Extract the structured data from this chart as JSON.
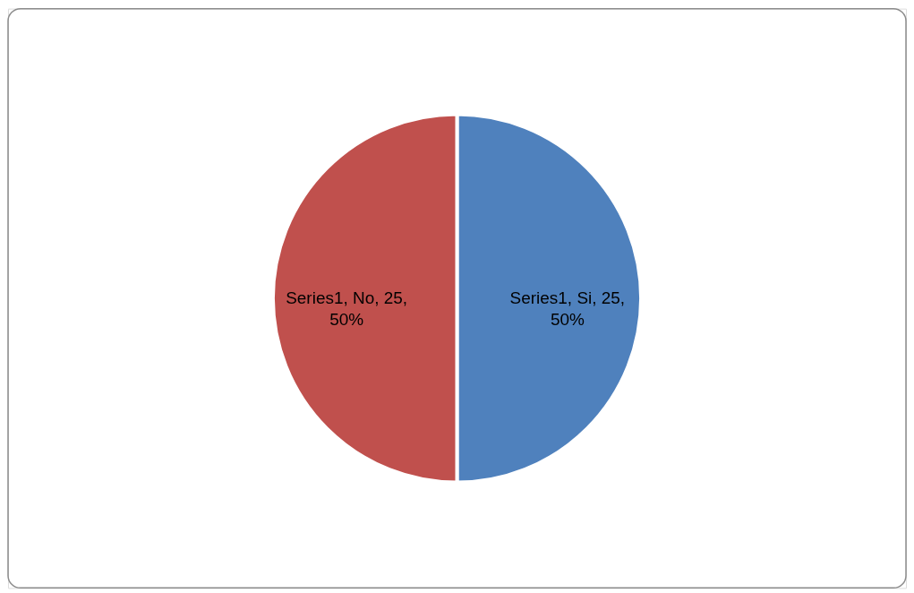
{
  "chart_data": {
    "type": "pie",
    "categories": [
      null,
      null
    ],
    "values": [
      25,
      25
    ],
    "colors": [
      "#4f81bd",
      "#c0504d"
    ],
    "value_labels": [
      "Series1, Si, 25, 50%",
      "Series1, No, 25, 50%"
    ],
    "legend": false
  }
}
